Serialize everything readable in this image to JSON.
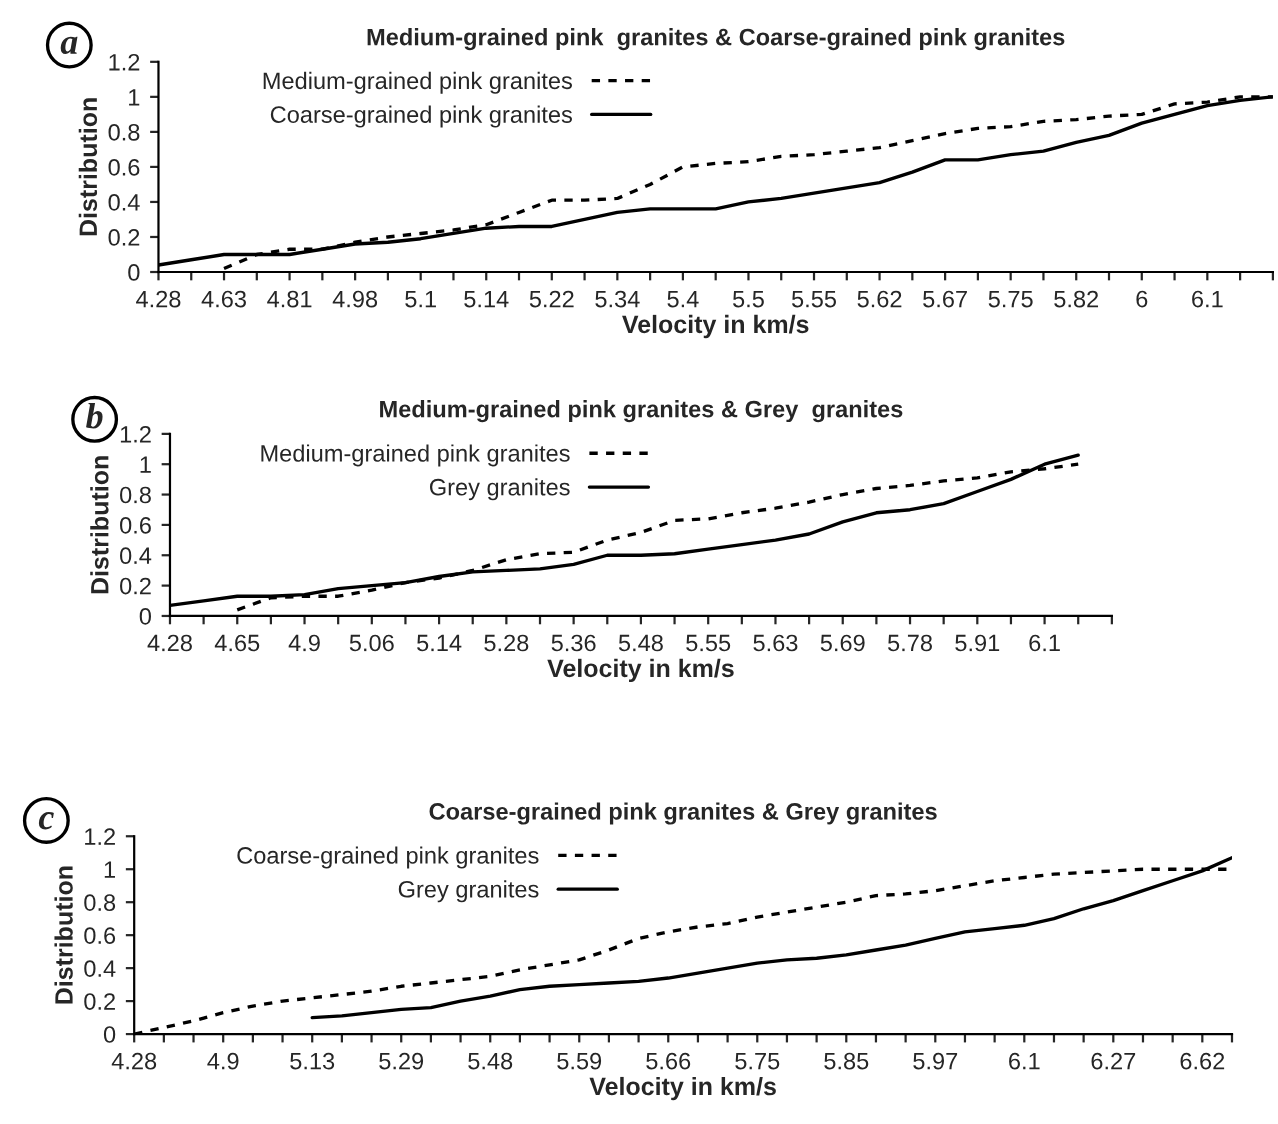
{
  "chart_data": [
    {
      "type": "line",
      "title": "Medium-grained pink  granites & Coarse-grained pink granites",
      "xlabel": "Velocity in km/s",
      "ylabel": "Distribution",
      "annotations": [
        "a"
      ],
      "categories": [
        "4.28",
        null,
        "4.63",
        null,
        "4.81",
        null,
        "4.98",
        null,
        "5.1",
        null,
        "5.14",
        null,
        "5.22",
        null,
        "5.34",
        null,
        "5.4",
        null,
        "5.5",
        null,
        "5.55",
        null,
        "5.62",
        null,
        "5.67",
        null,
        "5.75",
        null,
        "5.82",
        null,
        "6",
        null,
        "6.1",
        null,
        null
      ],
      "ylim": [
        0,
        1.2
      ],
      "yticks": [
        0,
        0.2,
        0.4,
        0.6,
        0.8,
        1,
        1.2
      ],
      "grid": false,
      "legend": "top left",
      "series": [
        {
          "name": "Medium-grained pink granites",
          "color": "#000000",
          "line_style": "dashed",
          "values": [
            null,
            null,
            0.02,
            0.1,
            0.13,
            0.13,
            0.17,
            0.2,
            0.22,
            0.24,
            0.27,
            0.34,
            0.41,
            0.41,
            0.42,
            0.5,
            0.6,
            0.62,
            0.63,
            0.66,
            0.67,
            0.69,
            0.71,
            0.75,
            0.79,
            0.82,
            0.83,
            0.86,
            0.87,
            0.89,
            0.9,
            0.96,
            0.97,
            1.0,
            1.0
          ]
        },
        {
          "name": "Coarse-grained pink granites",
          "color": "#000000",
          "line_style": "solid",
          "values": [
            0.04,
            0.07,
            0.1,
            0.1,
            0.1,
            0.13,
            0.16,
            0.17,
            0.19,
            0.22,
            0.25,
            0.26,
            0.26,
            0.3,
            0.34,
            0.36,
            0.36,
            0.36,
            0.4,
            0.42,
            0.45,
            0.48,
            0.51,
            0.57,
            0.64,
            0.64,
            0.67,
            0.69,
            0.74,
            0.78,
            0.85,
            0.9,
            0.95,
            0.98,
            1.0
          ]
        }
      ]
    },
    {
      "type": "line",
      "title": "Medium-grained pink granites & Grey  granites",
      "xlabel": "Velocity in km/s",
      "ylabel": "Distribution",
      "annotations": [
        "b"
      ],
      "categories": [
        "4.28",
        null,
        "4.65",
        null,
        "4.9",
        null,
        "5.06",
        null,
        "5.14",
        null,
        "5.28",
        null,
        "5.36",
        null,
        "5.48",
        null,
        "5.55",
        null,
        "5.63",
        null,
        "5.69",
        null,
        "5.78",
        null,
        "5.91",
        null,
        "6.1",
        null,
        null
      ],
      "ylim": [
        0,
        1.2
      ],
      "yticks": [
        0,
        0.2,
        0.4,
        0.6,
        0.8,
        1,
        1.2
      ],
      "grid": false,
      "legend": "top left",
      "series": [
        {
          "name": "Medium-grained pink granites",
          "color": "#000000",
          "line_style": "dashed",
          "values": [
            null,
            null,
            0.04,
            0.12,
            0.13,
            0.13,
            0.17,
            0.22,
            0.25,
            0.3,
            0.37,
            0.41,
            0.42,
            0.5,
            0.55,
            0.63,
            0.64,
            0.68,
            0.71,
            0.75,
            0.8,
            0.84,
            0.86,
            0.89,
            0.91,
            0.95,
            0.97,
            1.0,
            null
          ]
        },
        {
          "name": "Grey granites",
          "color": "#000000",
          "line_style": "solid",
          "values": [
            0.07,
            0.1,
            0.13,
            0.13,
            0.14,
            0.18,
            0.2,
            0.22,
            0.26,
            0.29,
            0.3,
            0.31,
            0.34,
            0.4,
            0.4,
            0.41,
            0.44,
            0.47,
            0.5,
            0.54,
            0.62,
            0.68,
            0.7,
            0.74,
            0.82,
            0.9,
            1.0,
            1.06,
            null
          ]
        }
      ]
    },
    {
      "type": "line",
      "title": "Coarse-grained pink granites & Grey granites",
      "xlabel": "Velocity in km/s",
      "ylabel": "Distribution",
      "annotations": [
        "c"
      ],
      "categories": [
        "4.28",
        null,
        null,
        "4.9",
        null,
        null,
        "5.13",
        null,
        null,
        "5.29",
        null,
        null,
        "5.48",
        null,
        null,
        "5.59",
        null,
        null,
        "5.66",
        null,
        null,
        "5.75",
        null,
        null,
        "5.85",
        null,
        null,
        "5.97",
        null,
        null,
        "6.1",
        null,
        null,
        "6.27",
        null,
        null,
        "6.62",
        null
      ],
      "ylim": [
        0,
        1.2
      ],
      "yticks": [
        0,
        0.2,
        0.4,
        0.6,
        0.8,
        1,
        1.2
      ],
      "grid": false,
      "legend": "top left",
      "series": [
        {
          "name": "Coarse-grained pink granites",
          "color": "#000000",
          "line_style": "dashed",
          "values": [
            0.0,
            0.04,
            0.08,
            0.13,
            0.17,
            0.2,
            0.22,
            0.24,
            0.26,
            0.29,
            0.31,
            0.33,
            0.35,
            0.39,
            0.42,
            0.45,
            0.51,
            0.58,
            0.62,
            0.65,
            0.67,
            0.71,
            0.74,
            0.77,
            0.8,
            0.84,
            0.85,
            0.87,
            0.9,
            0.93,
            0.95,
            0.97,
            0.98,
            0.99,
            1.0,
            1.0,
            1.0,
            1.0
          ]
        },
        {
          "name": "Grey granites",
          "color": "#000000",
          "line_style": "solid",
          "values": [
            null,
            null,
            null,
            null,
            null,
            null,
            0.1,
            0.11,
            0.13,
            0.15,
            0.16,
            0.2,
            0.23,
            0.27,
            0.29,
            0.3,
            0.31,
            0.32,
            0.34,
            0.37,
            0.4,
            0.43,
            0.45,
            0.46,
            0.48,
            0.51,
            0.54,
            0.58,
            0.62,
            0.64,
            0.66,
            0.7,
            0.76,
            0.81,
            0.87,
            0.93,
            0.99,
            1.07
          ]
        }
      ]
    }
  ]
}
